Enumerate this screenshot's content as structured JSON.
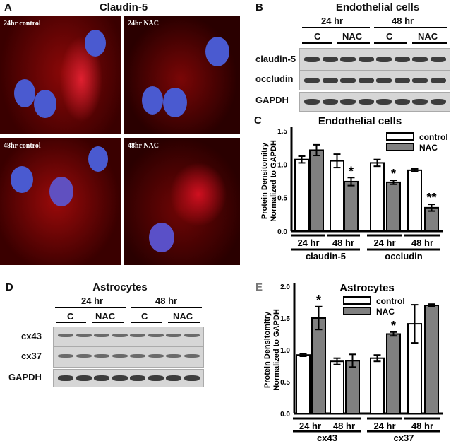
{
  "panelA": {
    "label": "A",
    "title": "Claudin-5",
    "images": [
      "24hr control",
      "24hr NAC",
      "48hr control",
      "48hr NAC"
    ]
  },
  "panelB": {
    "label": "B",
    "title": "Endothelial cells",
    "times": [
      "24 hr",
      "48 hr"
    ],
    "conditions": [
      "C",
      "NAC",
      "C",
      "NAC"
    ],
    "rows": [
      "claudin-5",
      "occludin",
      "GAPDH"
    ]
  },
  "panelD": {
    "label": "D",
    "title": "Astrocytes",
    "times": [
      "24 hr",
      "48 hr"
    ],
    "conditions": [
      "C",
      "NAC",
      "C",
      "NAC"
    ],
    "rows": [
      "cx43",
      "cx37",
      "GAPDH"
    ]
  },
  "colors": {
    "control": "#ffffff",
    "NAC": "#808080",
    "nuclei": "#4a5ad0",
    "stain": "#e01010"
  },
  "chart_data": [
    {
      "panel": "C",
      "type": "bar",
      "title": "Endothelial cells",
      "ylabel": [
        "Protein Densitomitry",
        "Normalized to GAPDH"
      ],
      "ylim": [
        0,
        1.5
      ],
      "yticks": [
        "0.0",
        "0.5",
        "1.0",
        "1.5"
      ],
      "categories": [
        "24 hr",
        "48 hr",
        "24 hr",
        "48 hr"
      ],
      "groups": [
        "claudin-5",
        "occludin"
      ],
      "series": [
        {
          "name": "control",
          "values": [
            1.07,
            1.05,
            1.02,
            0.91
          ],
          "errors": [
            0.05,
            0.1,
            0.05,
            0.02
          ]
        },
        {
          "name": "NAC",
          "values": [
            1.21,
            0.74,
            0.73,
            0.35
          ],
          "errors": [
            0.08,
            0.06,
            0.03,
            0.05
          ]
        }
      ],
      "annotations": [
        "",
        "*",
        "*",
        "**"
      ],
      "legend": "top-right"
    },
    {
      "panel": "E",
      "type": "bar",
      "title": "Astrocytes",
      "ylabel": [
        "Protein Densitomitry",
        "Normalized to GAPDH"
      ],
      "ylim": [
        0,
        2.0
      ],
      "yticks": [
        "0.0",
        "0.5",
        "1.0",
        "1.5",
        "2.0"
      ],
      "categories": [
        "24 hr",
        "48 hr",
        "24 hr",
        "48 hr"
      ],
      "groups": [
        "cx43",
        "cx37"
      ],
      "series": [
        {
          "name": "control",
          "values": [
            0.92,
            0.82,
            0.87,
            1.41
          ],
          "errors": [
            0.02,
            0.05,
            0.05,
            0.3
          ]
        },
        {
          "name": "NAC",
          "values": [
            1.5,
            0.83,
            1.25,
            1.7
          ],
          "errors": [
            0.18,
            0.1,
            0.03,
            0.02
          ]
        }
      ],
      "annotations": [
        "*",
        "",
        "*",
        ""
      ],
      "legend": "top"
    }
  ]
}
